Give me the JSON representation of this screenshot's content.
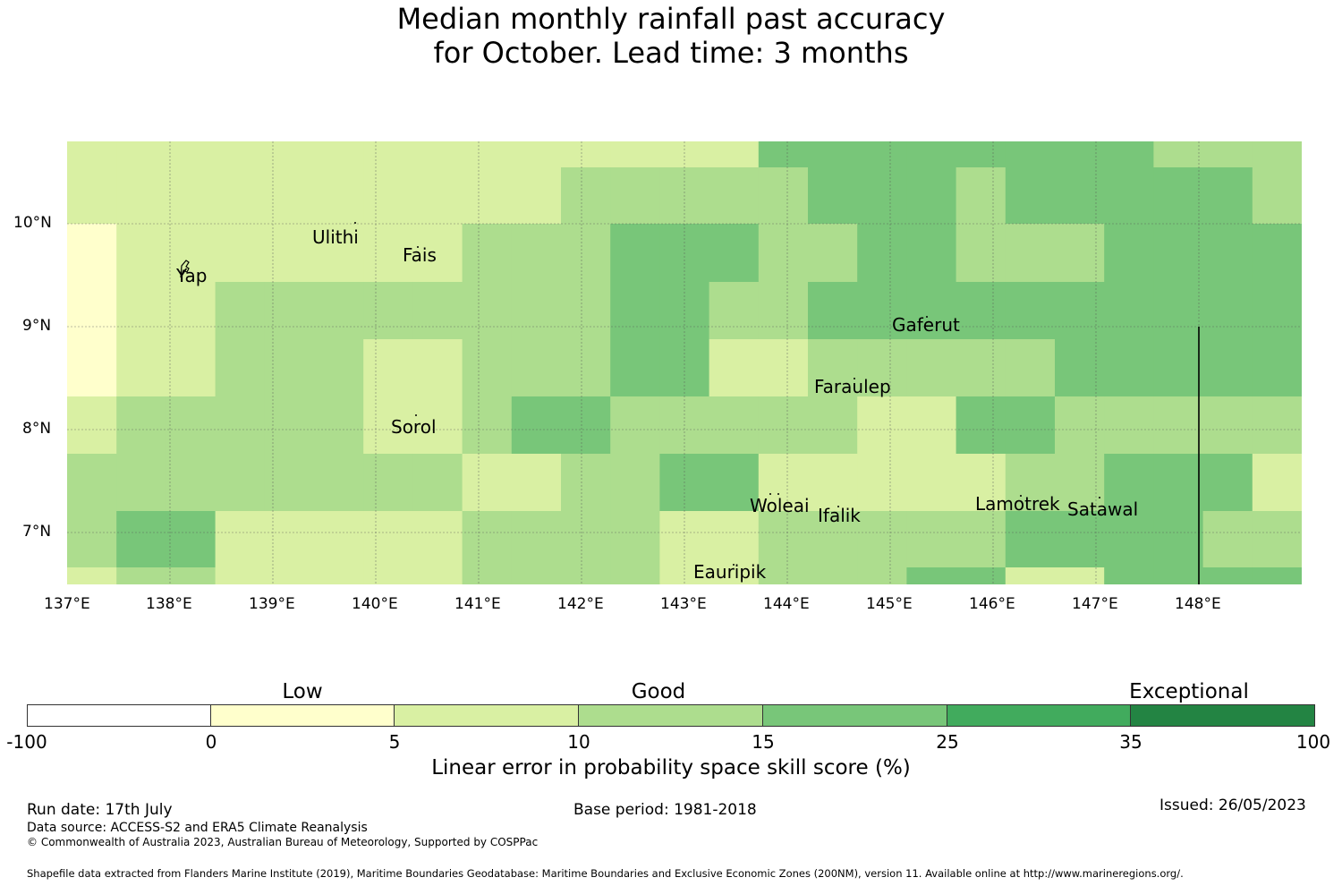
{
  "title": {
    "line1": "Median monthly rainfall past accuracy",
    "line2": "for October. Lead time: 3 months"
  },
  "map": {
    "lat_ticks": [
      "10°N",
      "9°N",
      "8°N",
      "7°N"
    ],
    "lon_ticks": [
      "137°E",
      "138°E",
      "139°E",
      "140°E",
      "141°E",
      "142°E",
      "143°E",
      "144°E",
      "145°E",
      "146°E",
      "147°E",
      "148°E"
    ],
    "places": [
      "Ulithi",
      "Yap",
      "Fais",
      "Gaferut",
      "Faraulep",
      "Sorol",
      "Woleai",
      "Ifalik",
      "Lamotrek",
      "Satawal",
      "Eauripik"
    ],
    "class_colors": [
      "#ffffcc",
      "#d9f0a3",
      "#addd8e",
      "#78c679",
      "#41ab5d",
      "#238443"
    ],
    "grid_classes": [
      [
        1,
        1,
        1,
        1,
        1,
        1,
        1,
        1,
        1,
        1,
        1,
        1,
        1,
        1,
        3,
        3,
        3,
        3,
        3,
        3,
        3,
        3,
        2,
        2,
        2
      ],
      [
        1,
        1,
        1,
        1,
        1,
        1,
        1,
        1,
        1,
        1,
        2,
        2,
        2,
        2,
        2,
        3,
        3,
        3,
        2,
        3,
        3,
        3,
        3,
        3,
        2
      ],
      [
        0,
        1,
        1,
        1,
        1,
        1,
        1,
        1,
        2,
        2,
        2,
        3,
        3,
        3,
        2,
        2,
        3,
        3,
        2,
        2,
        2,
        3,
        3,
        3,
        3
      ],
      [
        0,
        1,
        1,
        2,
        2,
        2,
        2,
        2,
        2,
        2,
        2,
        3,
        3,
        2,
        2,
        3,
        3,
        3,
        3,
        3,
        3,
        3,
        3,
        3,
        3
      ],
      [
        0,
        1,
        1,
        2,
        2,
        2,
        1,
        1,
        2,
        2,
        2,
        3,
        3,
        1,
        1,
        2,
        2,
        2,
        2,
        2,
        3,
        3,
        3,
        3,
        3
      ],
      [
        1,
        2,
        2,
        2,
        2,
        2,
        1,
        1,
        2,
        3,
        3,
        2,
        2,
        2,
        2,
        2,
        1,
        1,
        3,
        3,
        2,
        2,
        2,
        2,
        2
      ],
      [
        2,
        2,
        2,
        2,
        2,
        2,
        2,
        2,
        1,
        1,
        2,
        2,
        3,
        3,
        1,
        1,
        1,
        1,
        1,
        2,
        2,
        3,
        3,
        3,
        1
      ],
      [
        2,
        3,
        3,
        1,
        1,
        1,
        1,
        1,
        2,
        2,
        2,
        2,
        1,
        1,
        2,
        2,
        2,
        2,
        2,
        3,
        3,
        3,
        3,
        2,
        2
      ],
      [
        1,
        2,
        2,
        1,
        1,
        1,
        1,
        1,
        2,
        2,
        2,
        2,
        1,
        1,
        2,
        2,
        2,
        3,
        3,
        1,
        1,
        3,
        3,
        3,
        3
      ]
    ]
  },
  "colorbar": {
    "categories": [
      "Low",
      "Good",
      "Exceptional"
    ],
    "ticks": [
      "-100",
      "0",
      "5",
      "10",
      "15",
      "25",
      "35",
      "100"
    ],
    "colors": [
      "#ffffff",
      "#ffffcc",
      "#d9f0a3",
      "#addd8e",
      "#78c679",
      "#41ab5d",
      "#238443"
    ],
    "label": "Linear error in probability space skill score (%)"
  },
  "footer": {
    "run_date": "Run date: 17th July",
    "base_period": "Base period: 1981-2018",
    "issued": "Issued: 26/05/2023",
    "data_source": "Data source: ACCESS-S2 and ERA5 Climate Reanalysis",
    "copyright": "© Commonwealth of Australia 2023, Australian Bureau of Meteorology, Supported by COSPPac",
    "shapefile": "Shapefile data extracted from Flanders Marine Institute (2019), Maritime Boundaries Geodatabase: Maritime Boundaries and Exclusive Economic Zones (200NM), version 11. Available online at http://www.marineregions.org/."
  }
}
